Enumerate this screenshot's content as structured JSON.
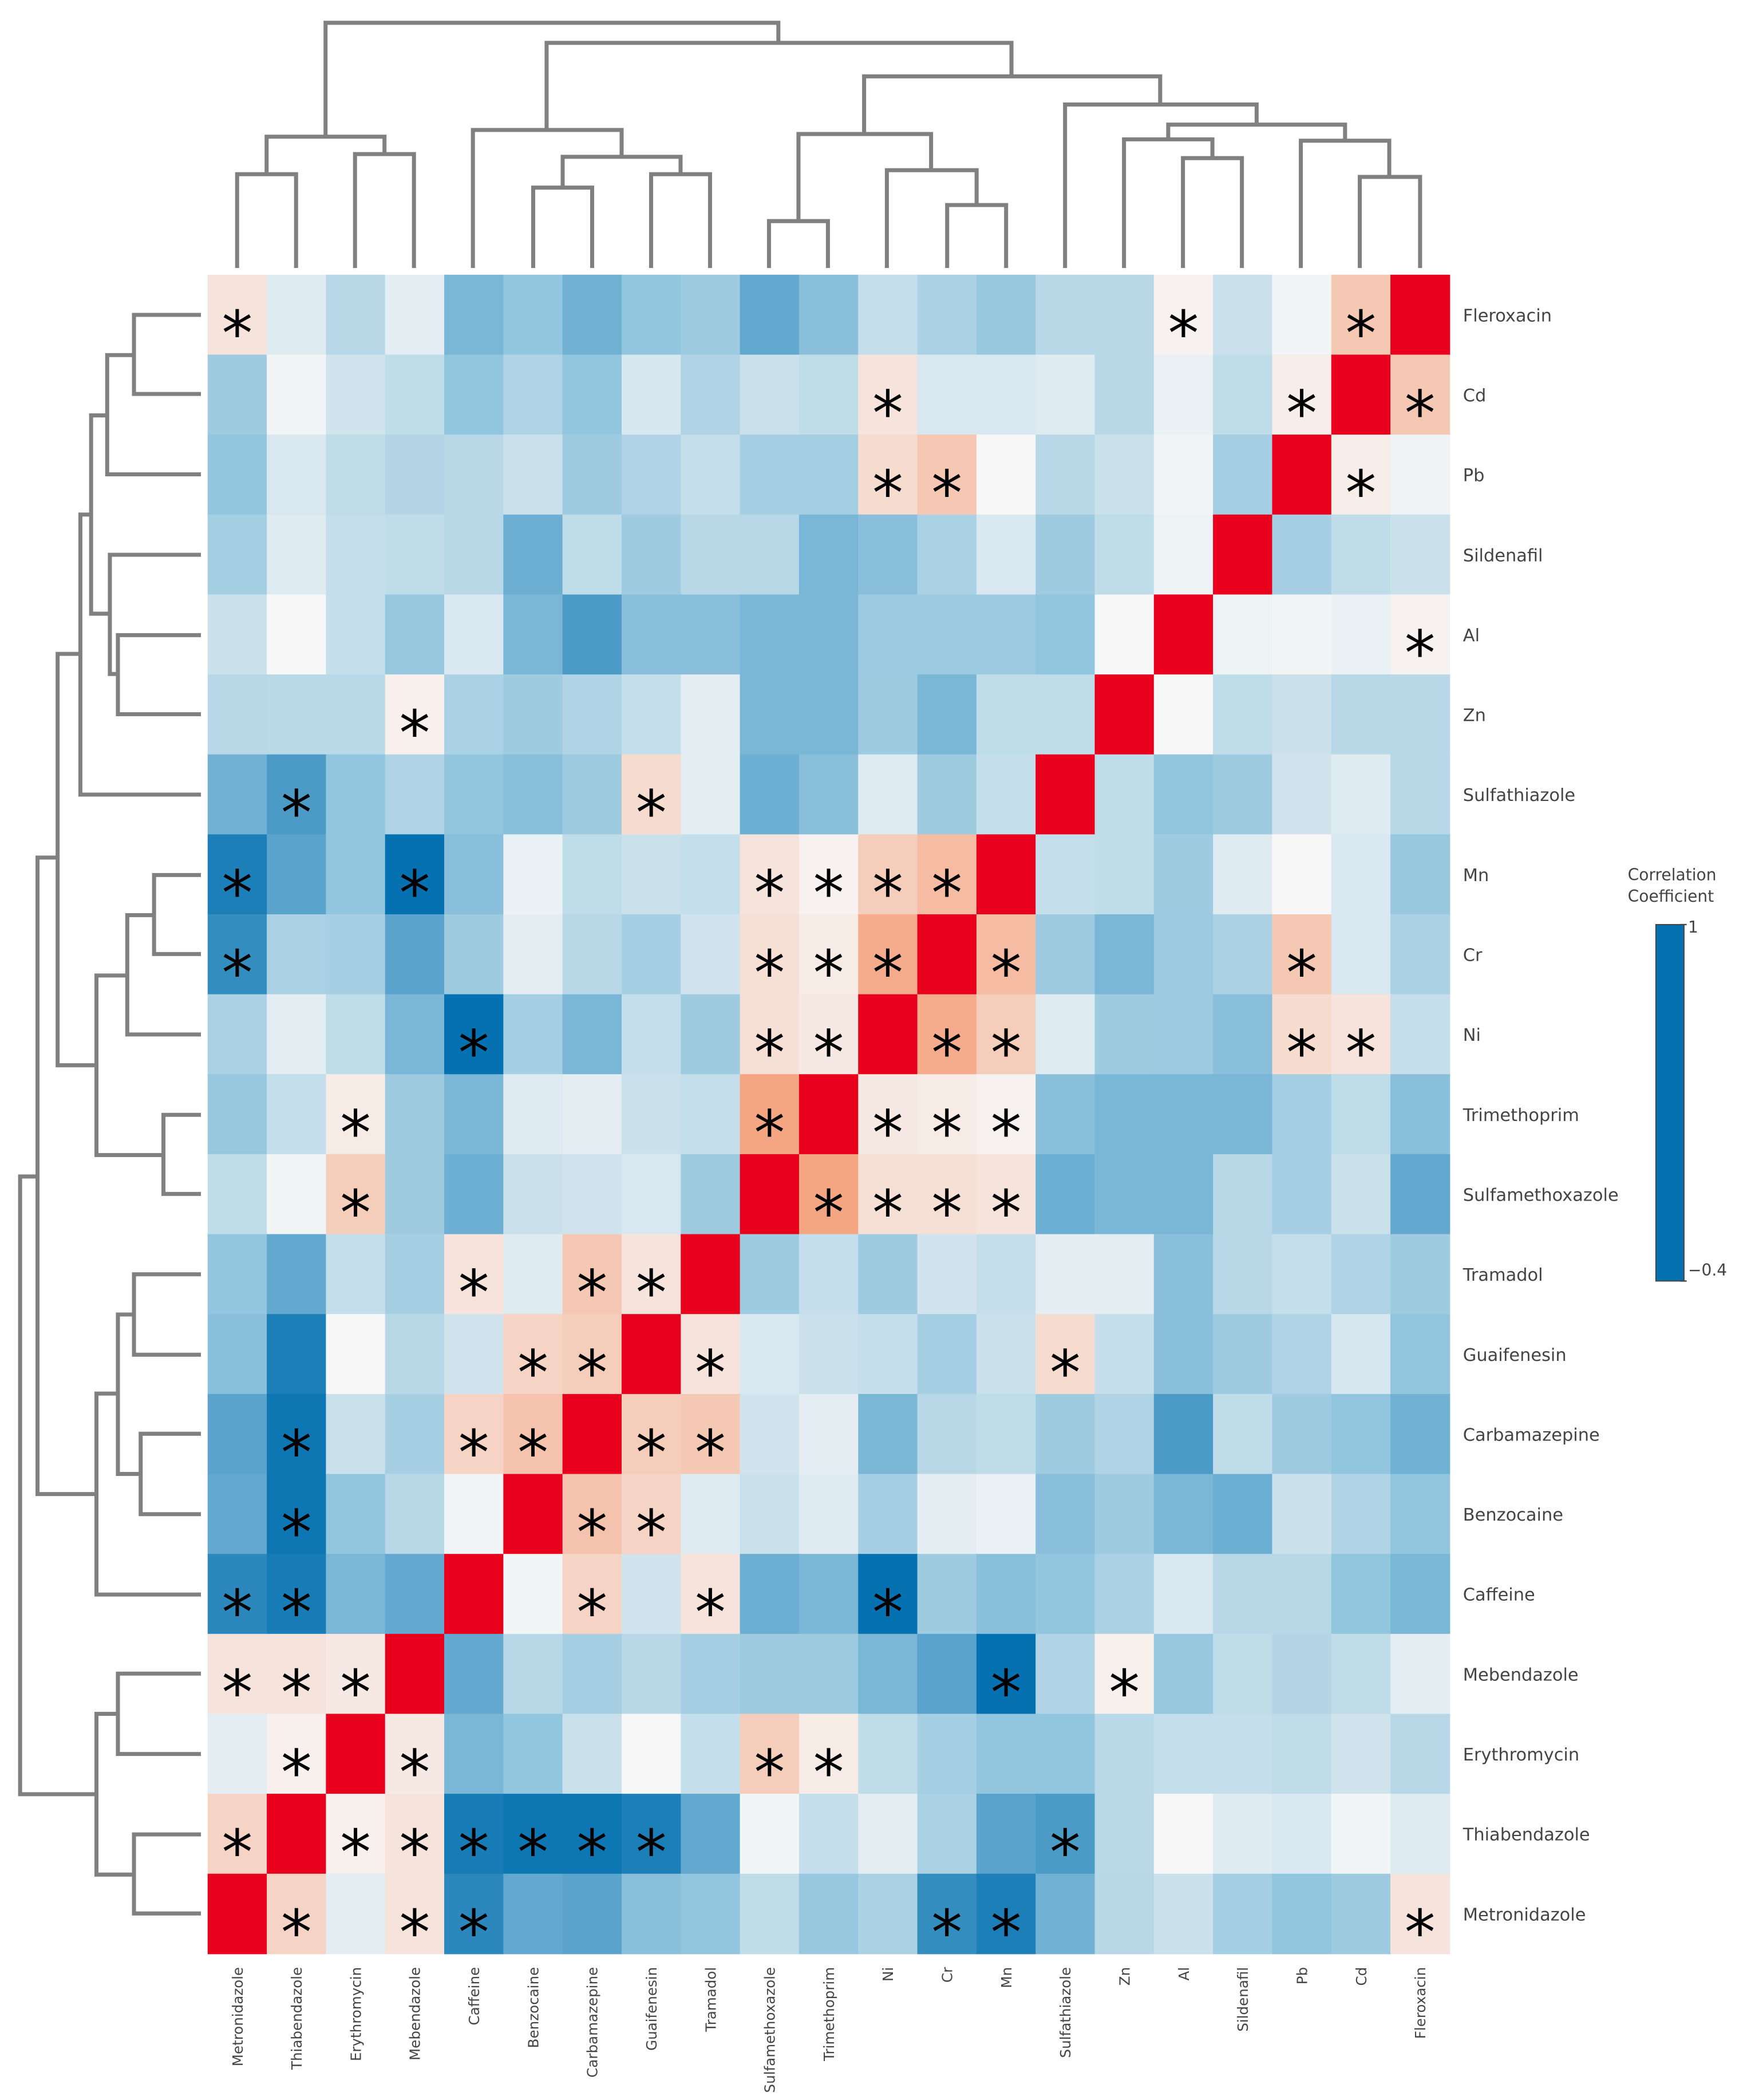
{
  "chart_data": {
    "type": "heatmap",
    "x": [
      "Metronidazole",
      "Thiabendazole",
      "Erythromycin",
      "Mebendazole",
      "Caffeine",
      "Benzocaine",
      "Carbamazepine",
      "Guaifenesin",
      "Tramadol",
      "Sulfamethoxazole",
      "Trimethoprim",
      "Ni",
      "Cr",
      "Mn",
      "Sulfathiazole",
      "Zn",
      "Al",
      "Sildenafil",
      "Pb",
      "Cd",
      "Fleroxacin"
    ],
    "y": [
      "Fleroxacin",
      "Cd",
      "Pb",
      "Sildenafil",
      "Al",
      "Zn",
      "Sulfathiazole",
      "Mn",
      "Cr",
      "Ni",
      "Trimethoprim",
      "Sulfamethoxazole",
      "Tramadol",
      "Guaifenesin",
      "Carbamazepine",
      "Benzocaine",
      "Caffeine",
      "Mebendazole",
      "Erythromycin",
      "Thiabendazole",
      "Metronidazole"
    ],
    "values": [
      [
        0.38,
        0.2,
        0.05,
        0.22,
        -0.15,
        -0.1,
        -0.17,
        -0.1,
        -0.05,
        -0.2,
        -0.12,
        0.1,
        0,
        -0.08,
        0.05,
        0.05,
        0.32,
        0.12,
        0.28,
        0.5,
        1
      ],
      [
        -0.05,
        0.28,
        0.15,
        0.08,
        -0.1,
        0.02,
        -0.1,
        0.17,
        0.02,
        0.12,
        0.08,
        0.38,
        0.18,
        0.18,
        0.2,
        0.05,
        0.25,
        0.08,
        0.34,
        1,
        0.5
      ],
      [
        -0.1,
        0.18,
        0.08,
        0.03,
        0.05,
        0.12,
        -0.05,
        0.02,
        0.1,
        -0.02,
        -0.03,
        0.42,
        0.5,
        0.3,
        0.05,
        0.12,
        0.28,
        -0.02,
        1,
        0.34,
        0.27
      ],
      [
        -0.03,
        0.2,
        0.1,
        0.08,
        0.05,
        -0.18,
        0.08,
        -0.05,
        0.05,
        0.05,
        -0.15,
        -0.12,
        0,
        0.18,
        -0.05,
        0.08,
        0.26,
        1,
        -0.02,
        0.08,
        0.12
      ],
      [
        0.12,
        0.3,
        0.1,
        -0.08,
        0.18,
        -0.15,
        -0.25,
        -0.12,
        -0.12,
        -0.15,
        -0.15,
        -0.06,
        -0.06,
        -0.06,
        -0.1,
        0.3,
        1,
        0.26,
        0.28,
        0.25,
        0.32
      ],
      [
        0.05,
        0.06,
        0.06,
        0.33,
        0,
        -0.05,
        0.02,
        0.1,
        0.22,
        -0.15,
        -0.15,
        -0.05,
        -0.15,
        0.08,
        0.08,
        1,
        0.3,
        0.08,
        0.12,
        0.05,
        0.05
      ],
      [
        -0.17,
        -0.25,
        -0.1,
        0.02,
        -0.1,
        -0.12,
        -0.05,
        0.42,
        0.22,
        -0.18,
        -0.12,
        0.2,
        -0.05,
        0.1,
        1,
        0.08,
        -0.1,
        -0.05,
        0.15,
        0.2,
        0.05
      ],
      [
        -0.35,
        -0.22,
        -0.1,
        -0.4,
        -0.12,
        0.25,
        0.08,
        0.12,
        0.1,
        0.38,
        0.32,
        0.48,
        0.55,
        1,
        0.1,
        0.08,
        -0.05,
        0.2,
        0.3,
        0.18,
        -0.08
      ],
      [
        -0.3,
        0,
        -0.02,
        -0.22,
        -0.05,
        0.22,
        0.05,
        -0.02,
        0.15,
        0.4,
        0.35,
        0.62,
        1,
        0.55,
        -0.05,
        -0.15,
        -0.06,
        0,
        0.5,
        0.18,
        0
      ],
      [
        0,
        0.22,
        0.08,
        -0.15,
        -0.4,
        -0.02,
        -0.15,
        0.1,
        -0.05,
        0.4,
        0.36,
        1,
        0.62,
        0.48,
        0.2,
        -0.05,
        -0.06,
        -0.12,
        0.42,
        0.38,
        0.1
      ],
      [
        -0.08,
        0.1,
        0.35,
        -0.05,
        -0.15,
        0.2,
        0.22,
        0.12,
        0.1,
        0.65,
        1,
        0.36,
        0.35,
        0.32,
        -0.12,
        -0.15,
        -0.15,
        -0.15,
        -0.03,
        0.08,
        -0.12
      ],
      [
        0.08,
        0.28,
        0.48,
        -0.05,
        -0.18,
        0.12,
        0.15,
        0.18,
        -0.05,
        1,
        0.65,
        0.4,
        0.4,
        0.38,
        -0.18,
        -0.15,
        -0.15,
        0.05,
        -0.02,
        0.12,
        -0.2
      ],
      [
        -0.1,
        -0.2,
        0.1,
        -0.02,
        0.38,
        0.2,
        0.5,
        0.38,
        1,
        -0.05,
        0.1,
        -0.05,
        0.15,
        0.1,
        0.22,
        0.22,
        -0.12,
        0.05,
        0.1,
        0.02,
        -0.05
      ],
      [
        -0.12,
        -0.35,
        0.3,
        0.05,
        0.15,
        0.45,
        0.48,
        1,
        0.38,
        0.18,
        0.12,
        0.1,
        -0.02,
        0.12,
        0.42,
        0.1,
        -0.12,
        -0.05,
        0.02,
        0.17,
        -0.1
      ],
      [
        -0.22,
        -0.38,
        0.12,
        -0.02,
        0.45,
        0.52,
        1,
        0.48,
        0.5,
        0.15,
        0.22,
        -0.15,
        0.05,
        0.08,
        -0.05,
        0.02,
        -0.25,
        0.08,
        -0.05,
        -0.1,
        -0.17
      ],
      [
        -0.2,
        -0.38,
        -0.1,
        0.05,
        0.28,
        1,
        0.52,
        0.45,
        0.2,
        0.12,
        0.2,
        -0.02,
        0.22,
        0.25,
        -0.12,
        -0.05,
        -0.15,
        -0.18,
        0.12,
        0.02,
        -0.1
      ],
      [
        -0.32,
        -0.36,
        -0.15,
        -0.2,
        1,
        0.28,
        0.45,
        0.15,
        0.38,
        -0.18,
        -0.15,
        -0.4,
        -0.05,
        -0.12,
        -0.1,
        0,
        0.18,
        0.05,
        0.05,
        -0.1,
        -0.15
      ],
      [
        0.38,
        0.38,
        0.36,
        1,
        -0.2,
        0.05,
        -0.02,
        0.05,
        -0.02,
        -0.05,
        -0.05,
        -0.15,
        -0.22,
        -0.4,
        0.02,
        0.33,
        -0.08,
        0.08,
        0.03,
        0.08,
        0.22
      ],
      [
        0.22,
        0.33,
        1,
        0.36,
        -0.15,
        -0.1,
        0.12,
        0.3,
        0.1,
        0.48,
        0.35,
        0.08,
        -0.02,
        -0.1,
        -0.1,
        0.06,
        0.1,
        0.1,
        0.08,
        0.15,
        0.05
      ],
      [
        0.45,
        1,
        0.33,
        0.38,
        -0.36,
        -0.38,
        -0.38,
        -0.35,
        -0.2,
        0.28,
        0.1,
        0.22,
        0,
        -0.22,
        -0.25,
        0.06,
        0.3,
        0.2,
        0.18,
        0.28,
        0.2
      ],
      [
        1,
        0.45,
        0.22,
        0.38,
        -0.32,
        -0.2,
        -0.22,
        -0.12,
        -0.1,
        0.08,
        -0.08,
        0,
        -0.3,
        -0.35,
        -0.17,
        0.05,
        0.12,
        -0.03,
        -0.1,
        -0.05,
        0.38
      ]
    ],
    "significance": [
      [
        "*",
        null,
        null,
        null,
        null,
        null,
        null,
        null,
        null,
        null,
        null,
        null,
        null,
        null,
        null,
        null,
        "*",
        null,
        null,
        "*",
        null
      ],
      [
        null,
        null,
        null,
        null,
        null,
        null,
        null,
        null,
        null,
        null,
        null,
        "*",
        null,
        null,
        null,
        null,
        null,
        null,
        "*",
        null,
        "*"
      ],
      [
        null,
        null,
        null,
        null,
        null,
        null,
        null,
        null,
        null,
        null,
        null,
        "*",
        "*",
        null,
        null,
        null,
        null,
        null,
        null,
        "*",
        null
      ],
      [
        null,
        null,
        null,
        null,
        null,
        null,
        null,
        null,
        null,
        null,
        null,
        null,
        null,
        null,
        null,
        null,
        null,
        null,
        null,
        null,
        null
      ],
      [
        null,
        null,
        null,
        null,
        null,
        null,
        null,
        null,
        null,
        null,
        null,
        null,
        null,
        null,
        null,
        null,
        null,
        null,
        null,
        null,
        "*"
      ],
      [
        null,
        null,
        null,
        "*",
        null,
        null,
        null,
        null,
        null,
        null,
        null,
        null,
        null,
        null,
        null,
        null,
        null,
        null,
        null,
        null,
        null
      ],
      [
        null,
        "*",
        null,
        null,
        null,
        null,
        null,
        "*",
        null,
        null,
        null,
        null,
        null,
        null,
        null,
        null,
        null,
        null,
        null,
        null,
        null
      ],
      [
        "*",
        null,
        null,
        "*",
        null,
        null,
        null,
        null,
        null,
        "*",
        "*",
        "*",
        "*",
        null,
        null,
        null,
        null,
        null,
        null,
        null,
        null
      ],
      [
        "*",
        null,
        null,
        null,
        null,
        null,
        null,
        null,
        null,
        "*",
        "*",
        "*",
        null,
        "*",
        null,
        null,
        null,
        null,
        "*",
        null,
        null
      ],
      [
        null,
        null,
        null,
        null,
        "*",
        null,
        null,
        null,
        null,
        "*",
        "*",
        null,
        "*",
        "*",
        null,
        null,
        null,
        null,
        "*",
        "*",
        null
      ],
      [
        null,
        null,
        "*",
        null,
        null,
        null,
        null,
        null,
        null,
        "*",
        null,
        "*",
        "*",
        "*",
        null,
        null,
        null,
        null,
        null,
        null,
        null
      ],
      [
        null,
        null,
        "*",
        null,
        null,
        null,
        null,
        null,
        null,
        null,
        "*",
        "*",
        "*",
        "*",
        null,
        null,
        null,
        null,
        null,
        null,
        null
      ],
      [
        null,
        null,
        null,
        null,
        "*",
        null,
        "*",
        "*",
        null,
        null,
        null,
        null,
        null,
        null,
        null,
        null,
        null,
        null,
        null,
        null,
        null
      ],
      [
        null,
        null,
        null,
        null,
        null,
        "*",
        "*",
        null,
        "*",
        null,
        null,
        null,
        null,
        null,
        "*",
        null,
        null,
        null,
        null,
        null,
        null
      ],
      [
        null,
        "*",
        null,
        null,
        "*",
        "*",
        null,
        "*",
        "*",
        null,
        null,
        null,
        null,
        null,
        null,
        null,
        null,
        null,
        null,
        null,
        null
      ],
      [
        null,
        "*",
        null,
        null,
        null,
        null,
        "*",
        "*",
        null,
        null,
        null,
        null,
        null,
        null,
        null,
        null,
        null,
        null,
        null,
        null,
        null
      ],
      [
        "*",
        "*",
        null,
        null,
        null,
        null,
        "*",
        null,
        "*",
        null,
        null,
        "*",
        null,
        null,
        null,
        null,
        null,
        null,
        null,
        null,
        null
      ],
      [
        "*",
        "*",
        "*",
        null,
        null,
        null,
        null,
        null,
        null,
        null,
        null,
        null,
        null,
        "*",
        null,
        "*",
        null,
        null,
        null,
        null,
        null
      ],
      [
        null,
        "*",
        null,
        "*",
        null,
        null,
        null,
        null,
        null,
        "*",
        "*",
        null,
        null,
        null,
        null,
        null,
        null,
        null,
        null,
        null,
        null
      ],
      [
        "*",
        null,
        "*",
        "*",
        "*",
        "*",
        "*",
        "*",
        null,
        null,
        null,
        null,
        null,
        null,
        "*",
        null,
        null,
        null,
        null,
        null,
        null
      ],
      [
        null,
        "*",
        null,
        "*",
        "*",
        null,
        null,
        null,
        null,
        null,
        null,
        null,
        "*",
        "*",
        null,
        null,
        null,
        null,
        null,
        null,
        "*"
      ]
    ],
    "colorbar_title": "Correlation Coefficient",
    "zlim": [
      -0.4,
      1
    ],
    "zticks": [
      1,
      {
        "value": -0.4,
        "label": "−0.4"
      }
    ],
    "colorscale": [
      [
        -0.4,
        "#0571b0"
      ],
      [
        -0.1,
        "#92c5de"
      ],
      [
        0.3,
        "#f7f7f7"
      ],
      [
        0.65,
        "#f4a582"
      ],
      [
        1,
        "#e8001c"
      ]
    ]
  }
}
